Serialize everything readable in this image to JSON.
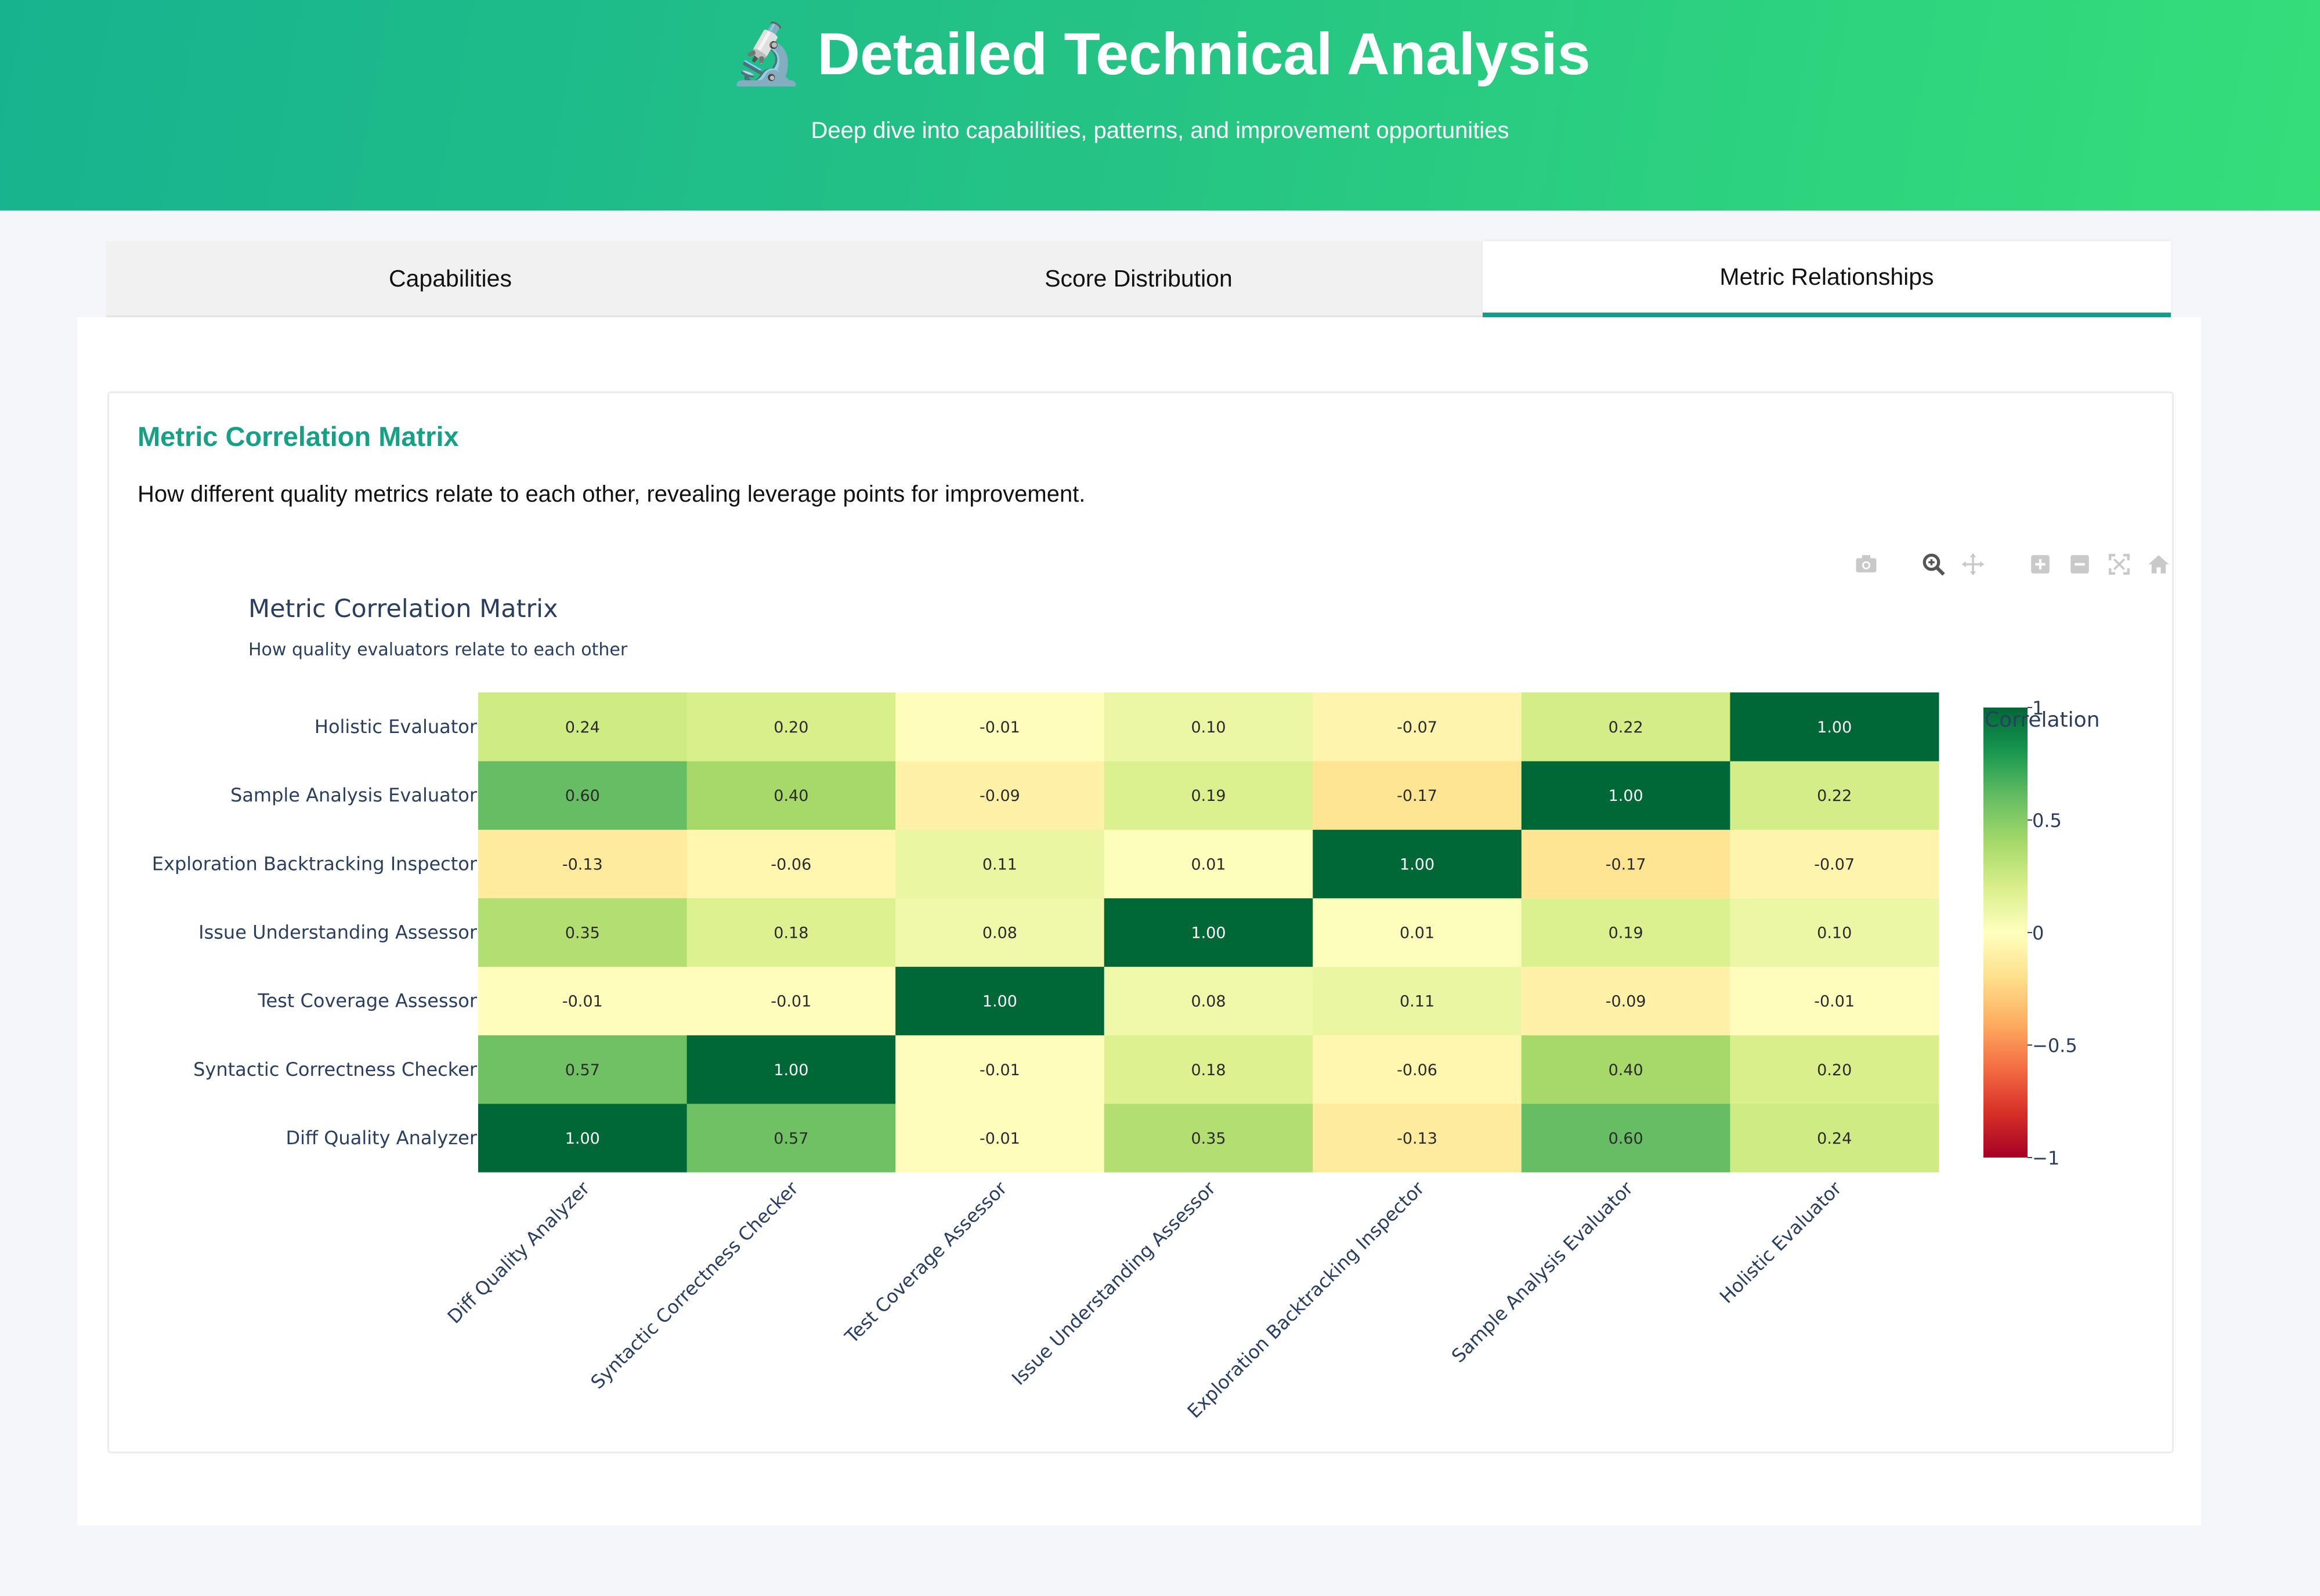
{
  "header": {
    "icon": "microscope-icon",
    "icon_glyph": "🔬",
    "title": "Detailed Technical Analysis",
    "subtitle": "Deep dive into capabilities, patterns, and improvement opportunities"
  },
  "tabs": [
    {
      "label": "Capabilities",
      "active": false
    },
    {
      "label": "Score Distribution",
      "active": false
    },
    {
      "label": "Metric Relationships",
      "active": true
    }
  ],
  "section": {
    "title": "Metric Correlation Matrix",
    "description": "How different quality metrics relate to each other, revealing leverage points for improvement."
  },
  "modebar": [
    "camera-icon",
    "zoom-icon",
    "pan-icon",
    "zoom-in-icon",
    "zoom-out-icon",
    "autoscale-icon",
    "home-icon"
  ],
  "colors": {
    "accent": "#16a085",
    "scale_low": "#a50026",
    "scale_mid": "#ffffbf",
    "scale_high": "#006837"
  },
  "chart_data": {
    "type": "heatmap",
    "title": "Metric Correlation Matrix",
    "subtitle": "How quality evaluators relate to each other",
    "x": [
      "Diff Quality Analyzer",
      "Syntactic Correctness Checker",
      "Test Coverage Assessor",
      "Issue Understanding Assessor",
      "Exploration Backtracking Inspector",
      "Sample Analysis Evaluator",
      "Holistic Evaluator"
    ],
    "y": [
      "Diff Quality Analyzer",
      "Syntactic Correctness Checker",
      "Test Coverage Assessor",
      "Issue Understanding Assessor",
      "Exploration Backtracking Inspector",
      "Sample Analysis Evaluator",
      "Holistic Evaluator"
    ],
    "z": [
      [
        1.0,
        0.57,
        -0.01,
        0.35,
        -0.13,
        0.6,
        0.24
      ],
      [
        0.57,
        1.0,
        -0.01,
        0.18,
        -0.06,
        0.4,
        0.2
      ],
      [
        -0.01,
        -0.01,
        1.0,
        0.08,
        0.11,
        -0.09,
        -0.01
      ],
      [
        0.35,
        0.18,
        0.08,
        1.0,
        0.01,
        0.19,
        0.1
      ],
      [
        -0.13,
        -0.06,
        0.11,
        0.01,
        1.0,
        -0.17,
        -0.07
      ],
      [
        0.6,
        0.4,
        -0.09,
        0.19,
        -0.17,
        1.0,
        0.22
      ],
      [
        0.24,
        0.2,
        -0.01,
        0.1,
        -0.07,
        0.22,
        1.0
      ]
    ],
    "colorbar": {
      "title": "Correlation",
      "range": [
        -1,
        1
      ],
      "ticks": [
        1,
        0.5,
        0,
        -0.5,
        -1
      ],
      "tick_labels": [
        "1",
        "0.5",
        "0",
        "−0.5",
        "−1"
      ]
    }
  }
}
